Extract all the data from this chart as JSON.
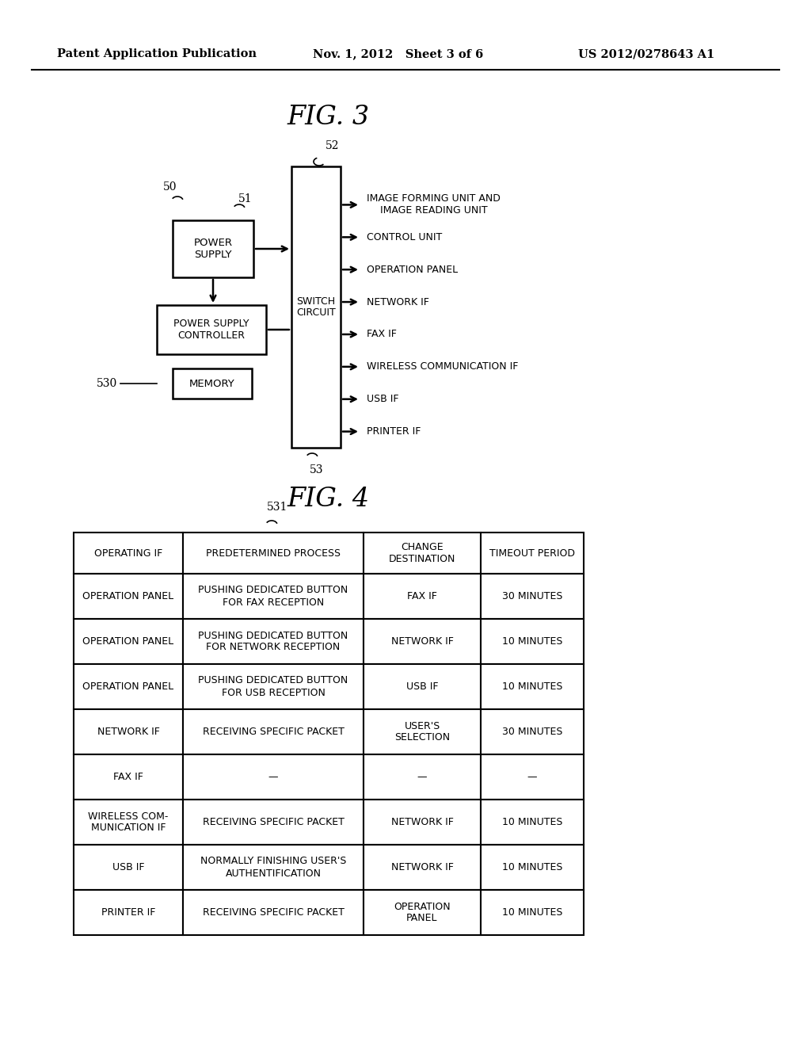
{
  "header_text": {
    "left": "Patent Application Publication",
    "middle": "Nov. 1, 2012   Sheet 3 of 6",
    "right": "US 2012/0278643 A1"
  },
  "fig3_title": "FIG. 3",
  "fig4_title": "FIG. 4",
  "fig3": {
    "label_50": "50",
    "label_51": "51",
    "label_52": "52",
    "label_53": "53",
    "label_530": "530",
    "box_power_supply": "POWER\nSUPPLY",
    "box_power_supply_controller": "POWER SUPPLY\nCONTROLLER",
    "box_memory": "MEMORY",
    "box_switch_circuit": "SWITCH\nCIRCUIT",
    "outputs": [
      "IMAGE FORMING UNIT AND\nIMAGE READING UNIT",
      "CONTROL UNIT",
      "OPERATION PANEL",
      "NETWORK IF",
      "FAX IF",
      "WIRELESS COMMUNICATION IF",
      "USB IF",
      "PRINTER IF"
    ]
  },
  "fig4": {
    "label_531": "531",
    "headers": [
      "OPERATING IF",
      "PREDETERMINED PROCESS",
      "CHANGE\nDESTINATION",
      "TIMEOUT PERIOD"
    ],
    "rows": [
      [
        "OPERATION PANEL",
        "PUSHING DEDICATED BUTTON\nFOR FAX RECEPTION",
        "FAX IF",
        "30 MINUTES"
      ],
      [
        "OPERATION PANEL",
        "PUSHING DEDICATED BUTTON\nFOR NETWORK RECEPTION",
        "NETWORK IF",
        "10 MINUTES"
      ],
      [
        "OPERATION PANEL",
        "PUSHING DEDICATED BUTTON\nFOR USB RECEPTION",
        "USB IF",
        "10 MINUTES"
      ],
      [
        "NETWORK IF",
        "RECEIVING SPECIFIC PACKET",
        "USER'S\nSELECTION",
        "30 MINUTES"
      ],
      [
        "FAX IF",
        "—",
        "—",
        "—"
      ],
      [
        "WIRELESS COM-\nMUNICATION IF",
        "RECEIVING SPECIFIC PACKET",
        "NETWORK IF",
        "10 MINUTES"
      ],
      [
        "USB IF",
        "NORMALLY FINISHING USER'S\nAUTHENTIFICATION",
        "NETWORK IF",
        "10 MINUTES"
      ],
      [
        "PRINTER IF",
        "RECEIVING SPECIFIC PACKET",
        "OPERATION\nPANEL",
        "10 MINUTES"
      ]
    ]
  },
  "bg_color": "#ffffff",
  "line_color": "#000000",
  "text_color": "#000000"
}
